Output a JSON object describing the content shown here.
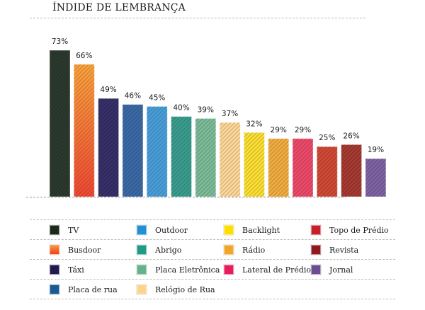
{
  "chart_data": {
    "type": "bar",
    "title": "ÍNDIDE DE LEMBRANÇA",
    "xlabel": "",
    "ylabel": "",
    "ylim": [
      0,
      73
    ],
    "grid": false,
    "legend_position": "bottom",
    "categories": [
      "TV",
      "Busdoor",
      "Táxi",
      "Placa de rua",
      "Outdoor",
      "Abrigo",
      "Placa Eletrônica",
      "Relógio de Rua",
      "Backlight",
      "Rádio",
      "Lateral de Prédio",
      "Topo de Prédio",
      "Revista",
      "Jornal"
    ],
    "values": [
      73,
      66,
      49,
      46,
      45,
      40,
      39,
      37,
      32,
      29,
      29,
      25,
      26,
      19
    ],
    "data_labels": [
      "73%",
      "66%",
      "49%",
      "46%",
      "45%",
      "40%",
      "39%",
      "37%",
      "32%",
      "29%",
      "29%",
      "25%",
      "26%",
      "19%"
    ],
    "unit": "%",
    "bar_colors": [
      "#2c3a2e",
      "#f4743a",
      "#37306a",
      "#3b6aa6",
      "#4a9fdb",
      "#3a9e8f",
      "#7dbd9a",
      "#fed899",
      "#fde034",
      "#f3ae40",
      "#ee4a6a",
      "#d14a36",
      "#a63a32",
      "#7f63a4"
    ],
    "bar_gradients": {
      "Busdoor": [
        "#fca43e",
        "#f24a33"
      ]
    }
  },
  "legend": {
    "columns": [
      [
        {
          "label": "TV",
          "color": "#1c2a1c"
        },
        {
          "label": "Busdoor",
          "color": "#f26a2e",
          "gradient": [
            "#fb9a2e",
            "#ee3b26"
          ]
        },
        {
          "label": "Táxi",
          "color": "#221a4e"
        },
        {
          "label": "Placa de rua",
          "color": "#1a5a94"
        }
      ],
      [
        {
          "label": "Outdoor",
          "color": "#2191d4"
        },
        {
          "label": "Abrigo",
          "color": "#1e9a88"
        },
        {
          "label": "Placa Eletrônica",
          "color": "#62b28a"
        },
        {
          "label": "Relógio de Rua",
          "color": "#fdd58a"
        }
      ],
      [
        {
          "label": "Backlight",
          "color": "#fedd00"
        },
        {
          "label": "Rádio",
          "color": "#f0a62a"
        },
        {
          "label": "Lateral de Prédio",
          "color": "#e91c5c"
        }
      ],
      [
        {
          "label": "Topo de Prédio",
          "color": "#c8202a"
        },
        {
          "label": "Revista",
          "color": "#8e1a1e"
        },
        {
          "label": "Jornal",
          "color": "#6a4e90"
        }
      ]
    ]
  }
}
